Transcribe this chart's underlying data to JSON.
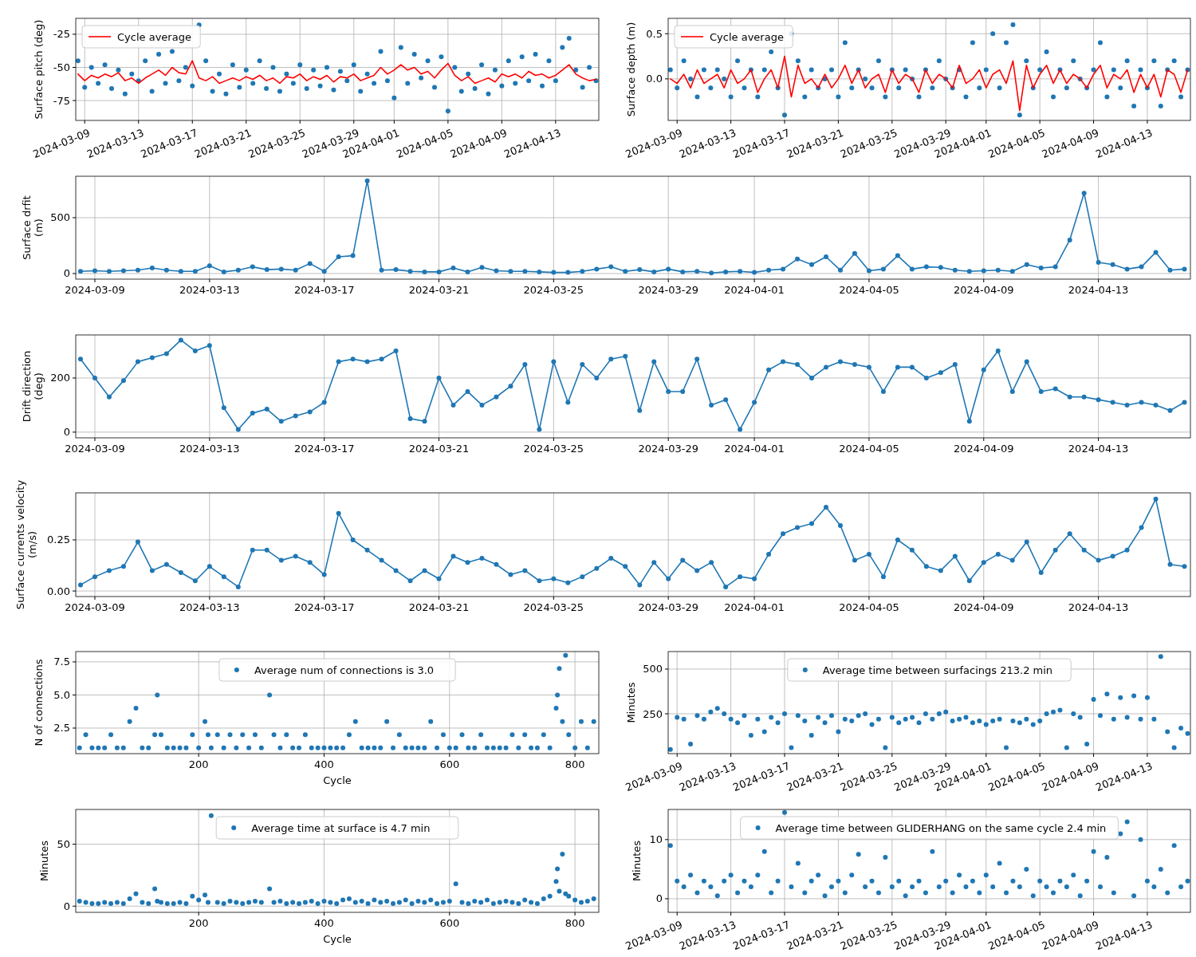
{
  "chart_data": [
    {
      "type": "scatter",
      "ylabel": "Surface pitch (deg)",
      "xlim": [
        "2024-03-08T08:00",
        "2024-04-16T05:00"
      ],
      "xticks": [
        "2024-03-09",
        "2024-03-13",
        "2024-03-17",
        "2024-03-21",
        "2024-03-25",
        "2024-03-29",
        "2024-04-01",
        "2024-04-05",
        "2024-04-09",
        "2024-04-13"
      ],
      "ylim": [
        -90,
        -13
      ],
      "yticks": [
        -75,
        -50,
        -25
      ],
      "grid": true,
      "legend": "top left",
      "marker": "circle",
      "x": [
        "2024-03-08T12:00",
        "2024-03-09",
        "2024-03-09T12:00",
        "2024-03-10",
        "2024-03-10T12:00",
        "2024-03-11",
        "2024-03-11T12:00",
        "2024-03-12",
        "2024-03-12T12:00",
        "2024-03-13",
        "2024-03-13T12:00",
        "2024-03-14",
        "2024-03-14T12:00",
        "2024-03-15",
        "2024-03-15T12:00",
        "2024-03-16",
        "2024-03-16T12:00",
        "2024-03-17",
        "2024-03-17T12:00",
        "2024-03-18",
        "2024-03-18T12:00",
        "2024-03-19",
        "2024-03-19T12:00",
        "2024-03-20",
        "2024-03-20T12:00",
        "2024-03-21",
        "2024-03-21T12:00",
        "2024-03-22",
        "2024-03-22T12:00",
        "2024-03-23",
        "2024-03-23T12:00",
        "2024-03-24",
        "2024-03-24T12:00",
        "2024-03-25",
        "2024-03-25T12:00",
        "2024-03-26",
        "2024-03-26T12:00",
        "2024-03-27",
        "2024-03-27T12:00",
        "2024-03-28",
        "2024-03-28T12:00",
        "2024-03-29",
        "2024-03-29T12:00",
        "2024-03-30",
        "2024-03-30T12:00",
        "2024-03-31",
        "2024-03-31T12:00",
        "2024-04-01",
        "2024-04-01T12:00",
        "2024-04-02",
        "2024-04-02T12:00",
        "2024-04-03",
        "2024-04-03T12:00",
        "2024-04-04",
        "2024-04-04T12:00",
        "2024-04-05",
        "2024-04-05T12:00",
        "2024-04-06",
        "2024-04-06T12:00",
        "2024-04-07",
        "2024-04-07T12:00",
        "2024-04-08",
        "2024-04-08T12:00",
        "2024-04-09",
        "2024-04-09T12:00",
        "2024-04-10",
        "2024-04-10T12:00",
        "2024-04-11",
        "2024-04-11T12:00",
        "2024-04-12",
        "2024-04-12T12:00",
        "2024-04-13",
        "2024-04-13T12:00",
        "2024-04-14",
        "2024-04-14T12:00",
        "2024-04-15",
        "2024-04-15T12:00",
        "2024-04-16"
      ],
      "series": [
        {
          "color": "#1f77b4",
          "values": [
            -45,
            -65,
            -50,
            -62,
            -48,
            -66,
            -52,
            -70,
            -55,
            -60,
            -45,
            -68,
            -40,
            -62,
            -38,
            -60,
            -50,
            -64,
            -18,
            -45,
            -68,
            -55,
            -70,
            -48,
            -65,
            -52,
            -62,
            -45,
            -66,
            -50,
            -68,
            -55,
            -62,
            -48,
            -66,
            -52,
            -64,
            -50,
            -67,
            -53,
            -60,
            -48,
            -68,
            -55,
            -62,
            -38,
            -60,
            -73,
            -35,
            -62,
            -40,
            -58,
            -45,
            -65,
            -42,
            -83,
            -50,
            -68,
            -55,
            -66,
            -48,
            -70,
            -52,
            -64,
            -45,
            -62,
            -42,
            -60,
            -40,
            -64,
            -45,
            -60,
            -35,
            -28,
            -52,
            -65,
            -50,
            -60
          ]
        },
        {
          "type": "line",
          "name": "Cycle average",
          "color": "#ff0000",
          "marker": "none",
          "values": [
            -55,
            -60,
            -56,
            -58,
            -55,
            -57,
            -54,
            -60,
            -58,
            -62,
            -58,
            -55,
            -52,
            -56,
            -50,
            -54,
            -55,
            -45,
            -58,
            -60,
            -57,
            -62,
            -60,
            -58,
            -60,
            -57,
            -59,
            -56,
            -60,
            -58,
            -62,
            -57,
            -58,
            -55,
            -60,
            -57,
            -59,
            -56,
            -61,
            -57,
            -58,
            -55,
            -60,
            -58,
            -56,
            -50,
            -55,
            -52,
            -48,
            -52,
            -50,
            -55,
            -53,
            -58,
            -52,
            -47,
            -56,
            -60,
            -57,
            -62,
            -60,
            -58,
            -61,
            -55,
            -57,
            -55,
            -58,
            -53,
            -56,
            -55,
            -58,
            -56,
            -52,
            -48,
            -55,
            -58,
            -60,
            -59
          ]
        }
      ]
    },
    {
      "type": "scatter",
      "ylabel": "Surface depth (m)",
      "xlim": [
        "2024-03-08T08:00",
        "2024-04-16T05:00"
      ],
      "xticks": [
        "2024-03-09",
        "2024-03-13",
        "2024-03-17",
        "2024-03-21",
        "2024-03-25",
        "2024-03-29",
        "2024-04-01",
        "2024-04-05",
        "2024-04-09",
        "2024-04-13"
      ],
      "ylim": [
        -0.46,
        0.67
      ],
      "yticks": [
        {
          "value": 0,
          "label": "0.0"
        },
        {
          "value": 0.5,
          "label": "0.5"
        }
      ],
      "grid": true,
      "legend": "top left",
      "marker": "circle",
      "x": [
        "2024-03-08T12:00",
        "2024-03-09",
        "2024-03-09T12:00",
        "2024-03-10",
        "2024-03-10T12:00",
        "2024-03-11",
        "2024-03-11T12:00",
        "2024-03-12",
        "2024-03-12T12:00",
        "2024-03-13",
        "2024-03-13T12:00",
        "2024-03-14",
        "2024-03-14T12:00",
        "2024-03-15",
        "2024-03-15T12:00",
        "2024-03-16",
        "2024-03-16T12:00",
        "2024-03-17",
        "2024-03-17T12:00",
        "2024-03-18",
        "2024-03-18T12:00",
        "2024-03-19",
        "2024-03-19T12:00",
        "2024-03-20",
        "2024-03-20T12:00",
        "2024-03-21",
        "2024-03-21T12:00",
        "2024-03-22",
        "2024-03-22T12:00",
        "2024-03-23",
        "2024-03-23T12:00",
        "2024-03-24",
        "2024-03-24T12:00",
        "2024-03-25",
        "2024-03-25T12:00",
        "2024-03-26",
        "2024-03-26T12:00",
        "2024-03-27",
        "2024-03-27T12:00",
        "2024-03-28",
        "2024-03-28T12:00",
        "2024-03-29",
        "2024-03-29T12:00",
        "2024-03-30",
        "2024-03-30T12:00",
        "2024-03-31",
        "2024-03-31T12:00",
        "2024-04-01",
        "2024-04-01T12:00",
        "2024-04-02",
        "2024-04-02T12:00",
        "2024-04-03",
        "2024-04-03T12:00",
        "2024-04-04",
        "2024-04-04T12:00",
        "2024-04-05",
        "2024-04-05T12:00",
        "2024-04-06",
        "2024-04-06T12:00",
        "2024-04-07",
        "2024-04-07T12:00",
        "2024-04-08",
        "2024-04-08T12:00",
        "2024-04-09",
        "2024-04-09T12:00",
        "2024-04-10",
        "2024-04-10T12:00",
        "2024-04-11",
        "2024-04-11T12:00",
        "2024-04-12",
        "2024-04-12T12:00",
        "2024-04-13",
        "2024-04-13T12:00",
        "2024-04-14",
        "2024-04-14T12:00",
        "2024-04-15",
        "2024-04-15T12:00",
        "2024-04-16"
      ],
      "series": [
        {
          "color": "#1f77b4",
          "values": [
            0.1,
            -0.1,
            0.2,
            0,
            -0.2,
            0.1,
            -0.1,
            0.1,
            0,
            -0.2,
            0.2,
            -0.1,
            0.1,
            -0.2,
            0.1,
            0.3,
            -0.1,
            -0.4,
            0.5,
            0.2,
            -0.2,
            0.1,
            -0.1,
            0,
            0.1,
            -0.2,
            0.4,
            -0.1,
            0.1,
            0,
            -0.1,
            0.2,
            -0.2,
            0.1,
            -0.1,
            0.1,
            0,
            -0.2,
            0.1,
            -0.1,
            0.2,
            0,
            -0.1,
            0.1,
            -0.2,
            0.4,
            -0.1,
            0.1,
            0.5,
            -0.1,
            0.4,
            0.6,
            -0.4,
            0.2,
            -0.1,
            0.1,
            0.3,
            -0.2,
            0.1,
            -0.1,
            0.2,
            0,
            -0.1,
            0.1,
            0.4,
            -0.2,
            0.1,
            -0.1,
            0.2,
            -0.3,
            0.1,
            -0.1,
            0.2,
            -0.3,
            0.1,
            0.2,
            -0.2,
            0.1
          ]
        },
        {
          "type": "line",
          "name": "Cycle average",
          "color": "#ff0000",
          "marker": "none",
          "values": [
            0,
            -0.05,
            0.05,
            -0.1,
            0.1,
            -0.05,
            0,
            0.05,
            -0.1,
            0.1,
            -0.05,
            0,
            0.1,
            -0.15,
            0,
            0.1,
            -0.1,
            0.25,
            -0.2,
            0.15,
            -0.05,
            0,
            -0.1,
            0.05,
            -0.1,
            0,
            0.15,
            -0.05,
            0.1,
            -0.1,
            0,
            0.05,
            -0.15,
            0.1,
            -0.05,
            0.05,
            0,
            -0.15,
            0.1,
            -0.05,
            0.05,
            0,
            -0.1,
            0.15,
            -0.05,
            0,
            0.1,
            -0.1,
            0.05,
            0.1,
            -0.05,
            0.2,
            -0.35,
            0.15,
            -0.1,
            0.05,
            0.15,
            -0.05,
            0.1,
            -0.05,
            0.05,
            0,
            -0.1,
            0.05,
            0.15,
            -0.1,
            0.05,
            0,
            0.1,
            -0.15,
            0.05,
            -0.1,
            0.05,
            -0.2,
            0.1,
            0.05,
            -0.15,
            0.1
          ]
        }
      ]
    },
    {
      "type": "line",
      "ylabel": "Surface drfit (m)",
      "xlim": [
        "2024-03-08T08:00",
        "2024-04-16T05:00"
      ],
      "xticks": [
        "2024-03-09",
        "2024-03-13",
        "2024-03-17",
        "2024-03-21",
        "2024-03-25",
        "2024-03-29",
        "2024-04-01",
        "2024-04-05",
        "2024-04-09",
        "2024-04-13"
      ],
      "ylim": [
        -50,
        871
      ],
      "yticks": [
        0,
        500
      ],
      "grid": true,
      "marker": "circle",
      "x": [
        "2024-03-08T12:00",
        "2024-03-09",
        "2024-03-09T12:00",
        "2024-03-10",
        "2024-03-10T12:00",
        "2024-03-11",
        "2024-03-11T12:00",
        "2024-03-12",
        "2024-03-12T12:00",
        "2024-03-13",
        "2024-03-13T12:00",
        "2024-03-14",
        "2024-03-14T12:00",
        "2024-03-15",
        "2024-03-15T12:00",
        "2024-03-16",
        "2024-03-16T12:00",
        "2024-03-17",
        "2024-03-17T12:00",
        "2024-03-18",
        "2024-03-18T12:00",
        "2024-03-19",
        "2024-03-19T12:00",
        "2024-03-20",
        "2024-03-20T12:00",
        "2024-03-21",
        "2024-03-21T12:00",
        "2024-03-22",
        "2024-03-22T12:00",
        "2024-03-23",
        "2024-03-23T12:00",
        "2024-03-24",
        "2024-03-24T12:00",
        "2024-03-25",
        "2024-03-25T12:00",
        "2024-03-26",
        "2024-03-26T12:00",
        "2024-03-27",
        "2024-03-27T12:00",
        "2024-03-28",
        "2024-03-28T12:00",
        "2024-03-29",
        "2024-03-29T12:00",
        "2024-03-30",
        "2024-03-30T12:00",
        "2024-03-31",
        "2024-03-31T12:00",
        "2024-04-01",
        "2024-04-01T12:00",
        "2024-04-02",
        "2024-04-02T12:00",
        "2024-04-03",
        "2024-04-03T12:00",
        "2024-04-04",
        "2024-04-04T12:00",
        "2024-04-05",
        "2024-04-05T12:00",
        "2024-04-06",
        "2024-04-06T12:00",
        "2024-04-07",
        "2024-04-07T12:00",
        "2024-04-08",
        "2024-04-08T12:00",
        "2024-04-09",
        "2024-04-09T12:00",
        "2024-04-10",
        "2024-04-10T12:00",
        "2024-04-11",
        "2024-04-11T12:00",
        "2024-04-12",
        "2024-04-12T12:00",
        "2024-04-13",
        "2024-04-13T12:00",
        "2024-04-14",
        "2024-04-14T12:00",
        "2024-04-15",
        "2024-04-15T12:00",
        "2024-04-16"
      ],
      "series": [
        {
          "color": "#1f77b4",
          "values": [
            20,
            25,
            20,
            25,
            30,
            50,
            30,
            20,
            20,
            70,
            15,
            30,
            60,
            35,
            40,
            30,
            90,
            20,
            150,
            160,
            830,
            30,
            35,
            20,
            15,
            15,
            50,
            15,
            55,
            25,
            20,
            20,
            15,
            10,
            10,
            20,
            40,
            60,
            20,
            35,
            15,
            40,
            15,
            20,
            5,
            15,
            20,
            10,
            30,
            40,
            130,
            80,
            150,
            30,
            180,
            25,
            40,
            160,
            40,
            60,
            55,
            30,
            20,
            25,
            30,
            20,
            80,
            50,
            60,
            300,
            720,
            100,
            80,
            40,
            60,
            190,
            30,
            40
          ]
        }
      ]
    },
    {
      "type": "line",
      "ylabel": "Drift direction (deg)",
      "xlim": [
        "2024-03-08T08:00",
        "2024-04-16T05:00"
      ],
      "xticks": [
        "2024-03-09",
        "2024-03-13",
        "2024-03-17",
        "2024-03-21",
        "2024-03-25",
        "2024-03-29",
        "2024-04-01",
        "2024-04-05",
        "2024-04-09",
        "2024-04-13"
      ],
      "ylim": [
        -21,
        359
      ],
      "yticks": [
        0,
        200
      ],
      "grid": true,
      "marker": "circle",
      "x": [
        "2024-03-08T12:00",
        "2024-03-09",
        "2024-03-09T12:00",
        "2024-03-10",
        "2024-03-10T12:00",
        "2024-03-11",
        "2024-03-11T12:00",
        "2024-03-12",
        "2024-03-12T12:00",
        "2024-03-13",
        "2024-03-13T12:00",
        "2024-03-14",
        "2024-03-14T12:00",
        "2024-03-15",
        "2024-03-15T12:00",
        "2024-03-16",
        "2024-03-16T12:00",
        "2024-03-17",
        "2024-03-17T12:00",
        "2024-03-18",
        "2024-03-18T12:00",
        "2024-03-19",
        "2024-03-19T12:00",
        "2024-03-20",
        "2024-03-20T12:00",
        "2024-03-21",
        "2024-03-21T12:00",
        "2024-03-22",
        "2024-03-22T12:00",
        "2024-03-23",
        "2024-03-23T12:00",
        "2024-03-24",
        "2024-03-24T12:00",
        "2024-03-25",
        "2024-03-25T12:00",
        "2024-03-26",
        "2024-03-26T12:00",
        "2024-03-27",
        "2024-03-27T12:00",
        "2024-03-28",
        "2024-03-28T12:00",
        "2024-03-29",
        "2024-03-29T12:00",
        "2024-03-30",
        "2024-03-30T12:00",
        "2024-03-31",
        "2024-03-31T12:00",
        "2024-04-01",
        "2024-04-01T12:00",
        "2024-04-02",
        "2024-04-02T12:00",
        "2024-04-03",
        "2024-04-03T12:00",
        "2024-04-04",
        "2024-04-04T12:00",
        "2024-04-05",
        "2024-04-05T12:00",
        "2024-04-06",
        "2024-04-06T12:00",
        "2024-04-07",
        "2024-04-07T12:00",
        "2024-04-08",
        "2024-04-08T12:00",
        "2024-04-09",
        "2024-04-09T12:00",
        "2024-04-10",
        "2024-04-10T12:00",
        "2024-04-11",
        "2024-04-11T12:00",
        "2024-04-12",
        "2024-04-12T12:00",
        "2024-04-13",
        "2024-04-13T12:00",
        "2024-04-14",
        "2024-04-14T12:00",
        "2024-04-15",
        "2024-04-15T12:00",
        "2024-04-16"
      ],
      "series": [
        {
          "color": "#1f77b4",
          "values": [
            270,
            200,
            130,
            190,
            260,
            275,
            290,
            340,
            300,
            320,
            90,
            10,
            70,
            85,
            40,
            60,
            75,
            110,
            260,
            270,
            260,
            270,
            300,
            50,
            40,
            200,
            100,
            150,
            100,
            130,
            170,
            250,
            10,
            260,
            110,
            250,
            200,
            270,
            280,
            80,
            260,
            150,
            150,
            270,
            100,
            120,
            10,
            110,
            230,
            260,
            250,
            200,
            240,
            260,
            250,
            240,
            150,
            240,
            240,
            200,
            220,
            250,
            40,
            230,
            300,
            150,
            260,
            150,
            160,
            130,
            130,
            120,
            110,
            100,
            110,
            100,
            80,
            110
          ]
        }
      ]
    },
    {
      "type": "line",
      "ylabel": "Surface currents velocity (m/s)",
      "xlim": [
        "2024-03-08T08:00",
        "2024-04-16T05:00"
      ],
      "xticks": [
        "2024-03-09",
        "2024-03-13",
        "2024-03-17",
        "2024-03-21",
        "2024-03-25",
        "2024-03-29",
        "2024-04-01",
        "2024-04-05",
        "2024-04-09",
        "2024-04-13"
      ],
      "ylim": [
        -0.027,
        0.48
      ],
      "yticks": [
        {
          "value": 0,
          "label": "0.00"
        },
        {
          "value": 0.25,
          "label": "0.25"
        }
      ],
      "grid": true,
      "marker": "circle",
      "x": [
        "2024-03-08T12:00",
        "2024-03-09",
        "2024-03-09T12:00",
        "2024-03-10",
        "2024-03-10T12:00",
        "2024-03-11",
        "2024-03-11T12:00",
        "2024-03-12",
        "2024-03-12T12:00",
        "2024-03-13",
        "2024-03-13T12:00",
        "2024-03-14",
        "2024-03-14T12:00",
        "2024-03-15",
        "2024-03-15T12:00",
        "2024-03-16",
        "2024-03-16T12:00",
        "2024-03-17",
        "2024-03-17T12:00",
        "2024-03-18",
        "2024-03-18T12:00",
        "2024-03-19",
        "2024-03-19T12:00",
        "2024-03-20",
        "2024-03-20T12:00",
        "2024-03-21",
        "2024-03-21T12:00",
        "2024-03-22",
        "2024-03-22T12:00",
        "2024-03-23",
        "2024-03-23T12:00",
        "2024-03-24",
        "2024-03-24T12:00",
        "2024-03-25",
        "2024-03-25T12:00",
        "2024-03-26",
        "2024-03-26T12:00",
        "2024-03-27",
        "2024-03-27T12:00",
        "2024-03-28",
        "2024-03-28T12:00",
        "2024-03-29",
        "2024-03-29T12:00",
        "2024-03-30",
        "2024-03-30T12:00",
        "2024-03-31",
        "2024-03-31T12:00",
        "2024-04-01",
        "2024-04-01T12:00",
        "2024-04-02",
        "2024-04-02T12:00",
        "2024-04-03",
        "2024-04-03T12:00",
        "2024-04-04",
        "2024-04-04T12:00",
        "2024-04-05",
        "2024-04-05T12:00",
        "2024-04-06",
        "2024-04-06T12:00",
        "2024-04-07",
        "2024-04-07T12:00",
        "2024-04-08",
        "2024-04-08T12:00",
        "2024-04-09",
        "2024-04-09T12:00",
        "2024-04-10",
        "2024-04-10T12:00",
        "2024-04-11",
        "2024-04-11T12:00",
        "2024-04-12",
        "2024-04-12T12:00",
        "2024-04-13",
        "2024-04-13T12:00",
        "2024-04-14",
        "2024-04-14T12:00",
        "2024-04-15",
        "2024-04-15T12:00",
        "2024-04-16"
      ],
      "series": [
        {
          "color": "#1f77b4",
          "values": [
            0.03,
            0.07,
            0.1,
            0.12,
            0.24,
            0.1,
            0.13,
            0.09,
            0.05,
            0.12,
            0.07,
            0.02,
            0.2,
            0.2,
            0.15,
            0.17,
            0.14,
            0.08,
            0.38,
            0.25,
            0.2,
            0.15,
            0.1,
            0.05,
            0.1,
            0.06,
            0.17,
            0.14,
            0.16,
            0.13,
            0.08,
            0.1,
            0.05,
            0.06,
            0.04,
            0.07,
            0.11,
            0.16,
            0.12,
            0.03,
            0.14,
            0.06,
            0.15,
            0.1,
            0.14,
            0.02,
            0.07,
            0.06,
            0.18,
            0.28,
            0.31,
            0.33,
            0.41,
            0.32,
            0.15,
            0.18,
            0.07,
            0.25,
            0.2,
            0.12,
            0.1,
            0.17,
            0.05,
            0.14,
            0.18,
            0.15,
            0.24,
            0.09,
            0.2,
            0.28,
            0.2,
            0.15,
            0.17,
            0.2,
            0.31,
            0.45,
            0.13,
            0.12
          ]
        }
      ]
    },
    {
      "type": "scatter",
      "xlabel": "Cycle",
      "ylabel": "N of connections",
      "xlim": [
        4,
        838
      ],
      "xticks": [
        200,
        400,
        600,
        800
      ],
      "ylim": [
        0.57,
        8.28
      ],
      "yticks": [
        {
          "value": 2.5,
          "label": "2.5"
        },
        {
          "value": 5,
          "label": "5.0"
        },
        {
          "value": 7.5,
          "label": "7.5"
        }
      ],
      "grid": true,
      "legend": "top",
      "marker": "circle",
      "x": [
        10,
        20,
        30,
        40,
        50,
        60,
        70,
        80,
        90,
        100,
        110,
        120,
        130,
        134,
        140,
        150,
        160,
        170,
        180,
        190,
        200,
        210,
        215,
        220,
        230,
        240,
        250,
        260,
        270,
        280,
        290,
        300,
        313,
        320,
        330,
        340,
        350,
        360,
        370,
        380,
        390,
        400,
        410,
        420,
        430,
        440,
        450,
        460,
        470,
        480,
        490,
        500,
        510,
        520,
        530,
        540,
        550,
        560,
        570,
        580,
        590,
        600,
        610,
        620,
        630,
        640,
        650,
        660,
        670,
        680,
        690,
        700,
        710,
        720,
        730,
        740,
        750,
        760,
        770,
        772,
        775,
        780,
        785,
        790,
        800,
        810,
        820,
        830
      ],
      "series": [
        {
          "name": "Average num of connections is 3.0",
          "color": "#1f77b4",
          "values": [
            1,
            2,
            1,
            1,
            1,
            2,
            1,
            1,
            3,
            4,
            1,
            1,
            2,
            5,
            2,
            1,
            1,
            1,
            1,
            2,
            1,
            3,
            2,
            1,
            2,
            1,
            2,
            1,
            2,
            1,
            2,
            1,
            5,
            2,
            1,
            2,
            1,
            1,
            2,
            1,
            1,
            1,
            1,
            1,
            1,
            2,
            3,
            1,
            1,
            1,
            1,
            3,
            1,
            2,
            1,
            1,
            1,
            1,
            3,
            1,
            2,
            1,
            1,
            2,
            1,
            1,
            2,
            1,
            1,
            1,
            1,
            2,
            1,
            2,
            1,
            1,
            2,
            1,
            4,
            5,
            7,
            3,
            8,
            2,
            1,
            3,
            1,
            3
          ]
        }
      ]
    },
    {
      "type": "scatter",
      "ylabel": "Minutes",
      "xlim": [
        "2024-03-08T08:00",
        "2024-04-16T05:00"
      ],
      "xticks": [
        "2024-03-09",
        "2024-03-13",
        "2024-03-17",
        "2024-03-21",
        "2024-03-25",
        "2024-03-29",
        "2024-04-01",
        "2024-04-05",
        "2024-04-09",
        "2024-04-13"
      ],
      "ylim": [
        27,
        598
      ],
      "yticks": [
        250,
        500
      ],
      "grid": true,
      "legend": "top",
      "marker": "circle",
      "x": [
        "2024-03-08T12:00",
        "2024-03-09",
        "2024-03-09T12:00",
        "2024-03-10",
        "2024-03-10T12:00",
        "2024-03-11",
        "2024-03-11T12:00",
        "2024-03-12",
        "2024-03-12T12:00",
        "2024-03-13",
        "2024-03-13T12:00",
        "2024-03-14",
        "2024-03-14T12:00",
        "2024-03-15",
        "2024-03-15T12:00",
        "2024-03-16",
        "2024-03-16T12:00",
        "2024-03-17",
        "2024-03-17T12:00",
        "2024-03-18",
        "2024-03-18T12:00",
        "2024-03-19",
        "2024-03-19T12:00",
        "2024-03-20",
        "2024-03-20T12:00",
        "2024-03-21",
        "2024-03-21T12:00",
        "2024-03-22",
        "2024-03-22T12:00",
        "2024-03-23",
        "2024-03-23T12:00",
        "2024-03-24",
        "2024-03-24T12:00",
        "2024-03-25",
        "2024-03-25T12:00",
        "2024-03-26",
        "2024-03-26T12:00",
        "2024-03-27",
        "2024-03-27T12:00",
        "2024-03-28",
        "2024-03-28T12:00",
        "2024-03-29",
        "2024-03-29T12:00",
        "2024-03-30",
        "2024-03-30T12:00",
        "2024-03-31",
        "2024-03-31T12:00",
        "2024-04-01",
        "2024-04-01T12:00",
        "2024-04-02",
        "2024-04-02T12:00",
        "2024-04-03",
        "2024-04-03T12:00",
        "2024-04-04",
        "2024-04-04T12:00",
        "2024-04-05",
        "2024-04-05T12:00",
        "2024-04-06",
        "2024-04-06T12:00",
        "2024-04-07",
        "2024-04-07T12:00",
        "2024-04-08",
        "2024-04-08T12:00",
        "2024-04-09",
        "2024-04-09T12:00",
        "2024-04-10",
        "2024-04-10T12:00",
        "2024-04-11",
        "2024-04-11T12:00",
        "2024-04-12",
        "2024-04-12T12:00",
        "2024-04-13",
        "2024-04-13T12:00",
        "2024-04-14",
        "2024-04-14T12:00",
        "2024-04-15",
        "2024-04-15T12:00",
        "2024-04-16"
      ],
      "series": [
        {
          "name": "Average time between surfacings 213.2 min",
          "color": "#1f77b4",
          "values": [
            50,
            230,
            220,
            80,
            240,
            220,
            260,
            280,
            250,
            220,
            200,
            240,
            130,
            220,
            150,
            230,
            200,
            250,
            60,
            240,
            210,
            130,
            230,
            200,
            240,
            150,
            220,
            210,
            240,
            250,
            190,
            220,
            60,
            230,
            200,
            220,
            230,
            200,
            250,
            220,
            250,
            260,
            210,
            220,
            230,
            200,
            210,
            190,
            210,
            220,
            60,
            210,
            200,
            220,
            190,
            210,
            250,
            260,
            270,
            60,
            250,
            230,
            80,
            330,
            240,
            360,
            220,
            340,
            230,
            350,
            220,
            340,
            220,
            570,
            150,
            60,
            170,
            140
          ]
        }
      ]
    },
    {
      "type": "scatter",
      "xlabel": "Cycle",
      "ylabel": "Minutes",
      "xlim": [
        4,
        838
      ],
      "xticks": [
        200,
        400,
        600,
        800
      ],
      "ylim": [
        -5,
        78
      ],
      "yticks": [
        0,
        50
      ],
      "grid": true,
      "legend": "top",
      "marker": "circle",
      "x": [
        10,
        20,
        30,
        40,
        50,
        60,
        70,
        80,
        90,
        100,
        110,
        120,
        130,
        134,
        140,
        150,
        160,
        170,
        180,
        190,
        200,
        210,
        215,
        220,
        230,
        240,
        250,
        260,
        270,
        280,
        290,
        300,
        313,
        320,
        330,
        340,
        350,
        360,
        370,
        380,
        390,
        400,
        410,
        420,
        430,
        440,
        450,
        460,
        470,
        480,
        490,
        500,
        510,
        520,
        530,
        540,
        550,
        560,
        570,
        580,
        590,
        600,
        610,
        620,
        630,
        640,
        650,
        660,
        670,
        680,
        690,
        700,
        710,
        720,
        730,
        740,
        750,
        760,
        770,
        772,
        775,
        780,
        785,
        790,
        800,
        810,
        820,
        830
      ],
      "series": [
        {
          "name": "Average time at surface is 4.7 min",
          "color": "#1f77b4",
          "values": [
            4,
            3,
            2,
            2,
            3,
            2,
            3,
            2,
            6,
            10,
            3,
            2,
            14,
            4,
            3,
            2,
            2,
            3,
            2,
            8,
            5,
            9,
            3,
            73,
            3,
            2,
            4,
            3,
            2,
            3,
            4,
            3,
            14,
            3,
            4,
            2,
            3,
            2,
            3,
            4,
            2,
            4,
            3,
            2,
            5,
            6,
            3,
            4,
            2,
            5,
            3,
            4,
            2,
            3,
            5,
            2,
            4,
            3,
            5,
            2,
            3,
            4,
            18,
            3,
            2,
            4,
            3,
            5,
            2,
            3,
            4,
            3,
            2,
            5,
            3,
            2,
            6,
            8,
            20,
            30,
            12,
            42,
            10,
            8,
            5,
            3,
            4,
            6
          ]
        }
      ]
    },
    {
      "type": "scatter",
      "ylabel": "Minutes",
      "xlim": [
        "2024-03-08T08:00",
        "2024-04-16T05:00"
      ],
      "xticks": [
        "2024-03-09",
        "2024-03-13",
        "2024-03-17",
        "2024-03-21",
        "2024-03-25",
        "2024-03-29",
        "2024-04-01",
        "2024-04-05",
        "2024-04-09",
        "2024-04-13"
      ],
      "ylim": [
        -2.3,
        15.1
      ],
      "yticks": [
        0,
        10
      ],
      "grid": true,
      "legend": "top",
      "marker": "circle",
      "x": [
        "2024-03-08T12:00",
        "2024-03-09",
        "2024-03-09T12:00",
        "2024-03-10",
        "2024-03-10T12:00",
        "2024-03-11",
        "2024-03-11T12:00",
        "2024-03-12",
        "2024-03-12T12:00",
        "2024-03-13",
        "2024-03-13T12:00",
        "2024-03-14",
        "2024-03-14T12:00",
        "2024-03-15",
        "2024-03-15T12:00",
        "2024-03-16",
        "2024-03-16T12:00",
        "2024-03-17",
        "2024-03-17T12:00",
        "2024-03-18",
        "2024-03-18T12:00",
        "2024-03-19",
        "2024-03-19T12:00",
        "2024-03-20",
        "2024-03-20T12:00",
        "2024-03-21",
        "2024-03-21T12:00",
        "2024-03-22",
        "2024-03-22T12:00",
        "2024-03-23",
        "2024-03-23T12:00",
        "2024-03-24",
        "2024-03-24T12:00",
        "2024-03-25",
        "2024-03-25T12:00",
        "2024-03-26",
        "2024-03-26T12:00",
        "2024-03-27",
        "2024-03-27T12:00",
        "2024-03-28",
        "2024-03-28T12:00",
        "2024-03-29",
        "2024-03-29T12:00",
        "2024-03-30",
        "2024-03-30T12:00",
        "2024-03-31",
        "2024-03-31T12:00",
        "2024-04-01",
        "2024-04-01T12:00",
        "2024-04-02",
        "2024-04-02T12:00",
        "2024-04-03",
        "2024-04-03T12:00",
        "2024-04-04",
        "2024-04-04T12:00",
        "2024-04-05",
        "2024-04-05T12:00",
        "2024-04-06",
        "2024-04-06T12:00",
        "2024-04-07",
        "2024-04-07T12:00",
        "2024-04-08",
        "2024-04-08T12:00",
        "2024-04-09",
        "2024-04-09T12:00",
        "2024-04-10",
        "2024-04-10T12:00",
        "2024-04-11",
        "2024-04-11T12:00",
        "2024-04-12",
        "2024-04-12T12:00",
        "2024-04-13",
        "2024-04-13T12:00",
        "2024-04-14",
        "2024-04-14T12:00",
        "2024-04-15",
        "2024-04-15T12:00",
        "2024-04-16"
      ],
      "series": [
        {
          "name": "Average time between GLIDERHANG on the same cycle 2.4 min",
          "color": "#1f77b4",
          "values": [
            9,
            3,
            2,
            4,
            1,
            3,
            2,
            0.5,
            3,
            4,
            1,
            3,
            2,
            4,
            8,
            1,
            3,
            14.6,
            2,
            6,
            1,
            3,
            4,
            0.5,
            2,
            3,
            1,
            4,
            7.5,
            2,
            3,
            1,
            7,
            2,
            3,
            0.5,
            2,
            3,
            1,
            8,
            2,
            3,
            1,
            4,
            2,
            3,
            1,
            4,
            2,
            6,
            1,
            3,
            2,
            5,
            0.5,
            3,
            2,
            1,
            3,
            2,
            4,
            0.5,
            3,
            8,
            2,
            7,
            1,
            11,
            13,
            0.5,
            10,
            3,
            2,
            5,
            1,
            9,
            2,
            3
          ]
        }
      ]
    }
  ]
}
